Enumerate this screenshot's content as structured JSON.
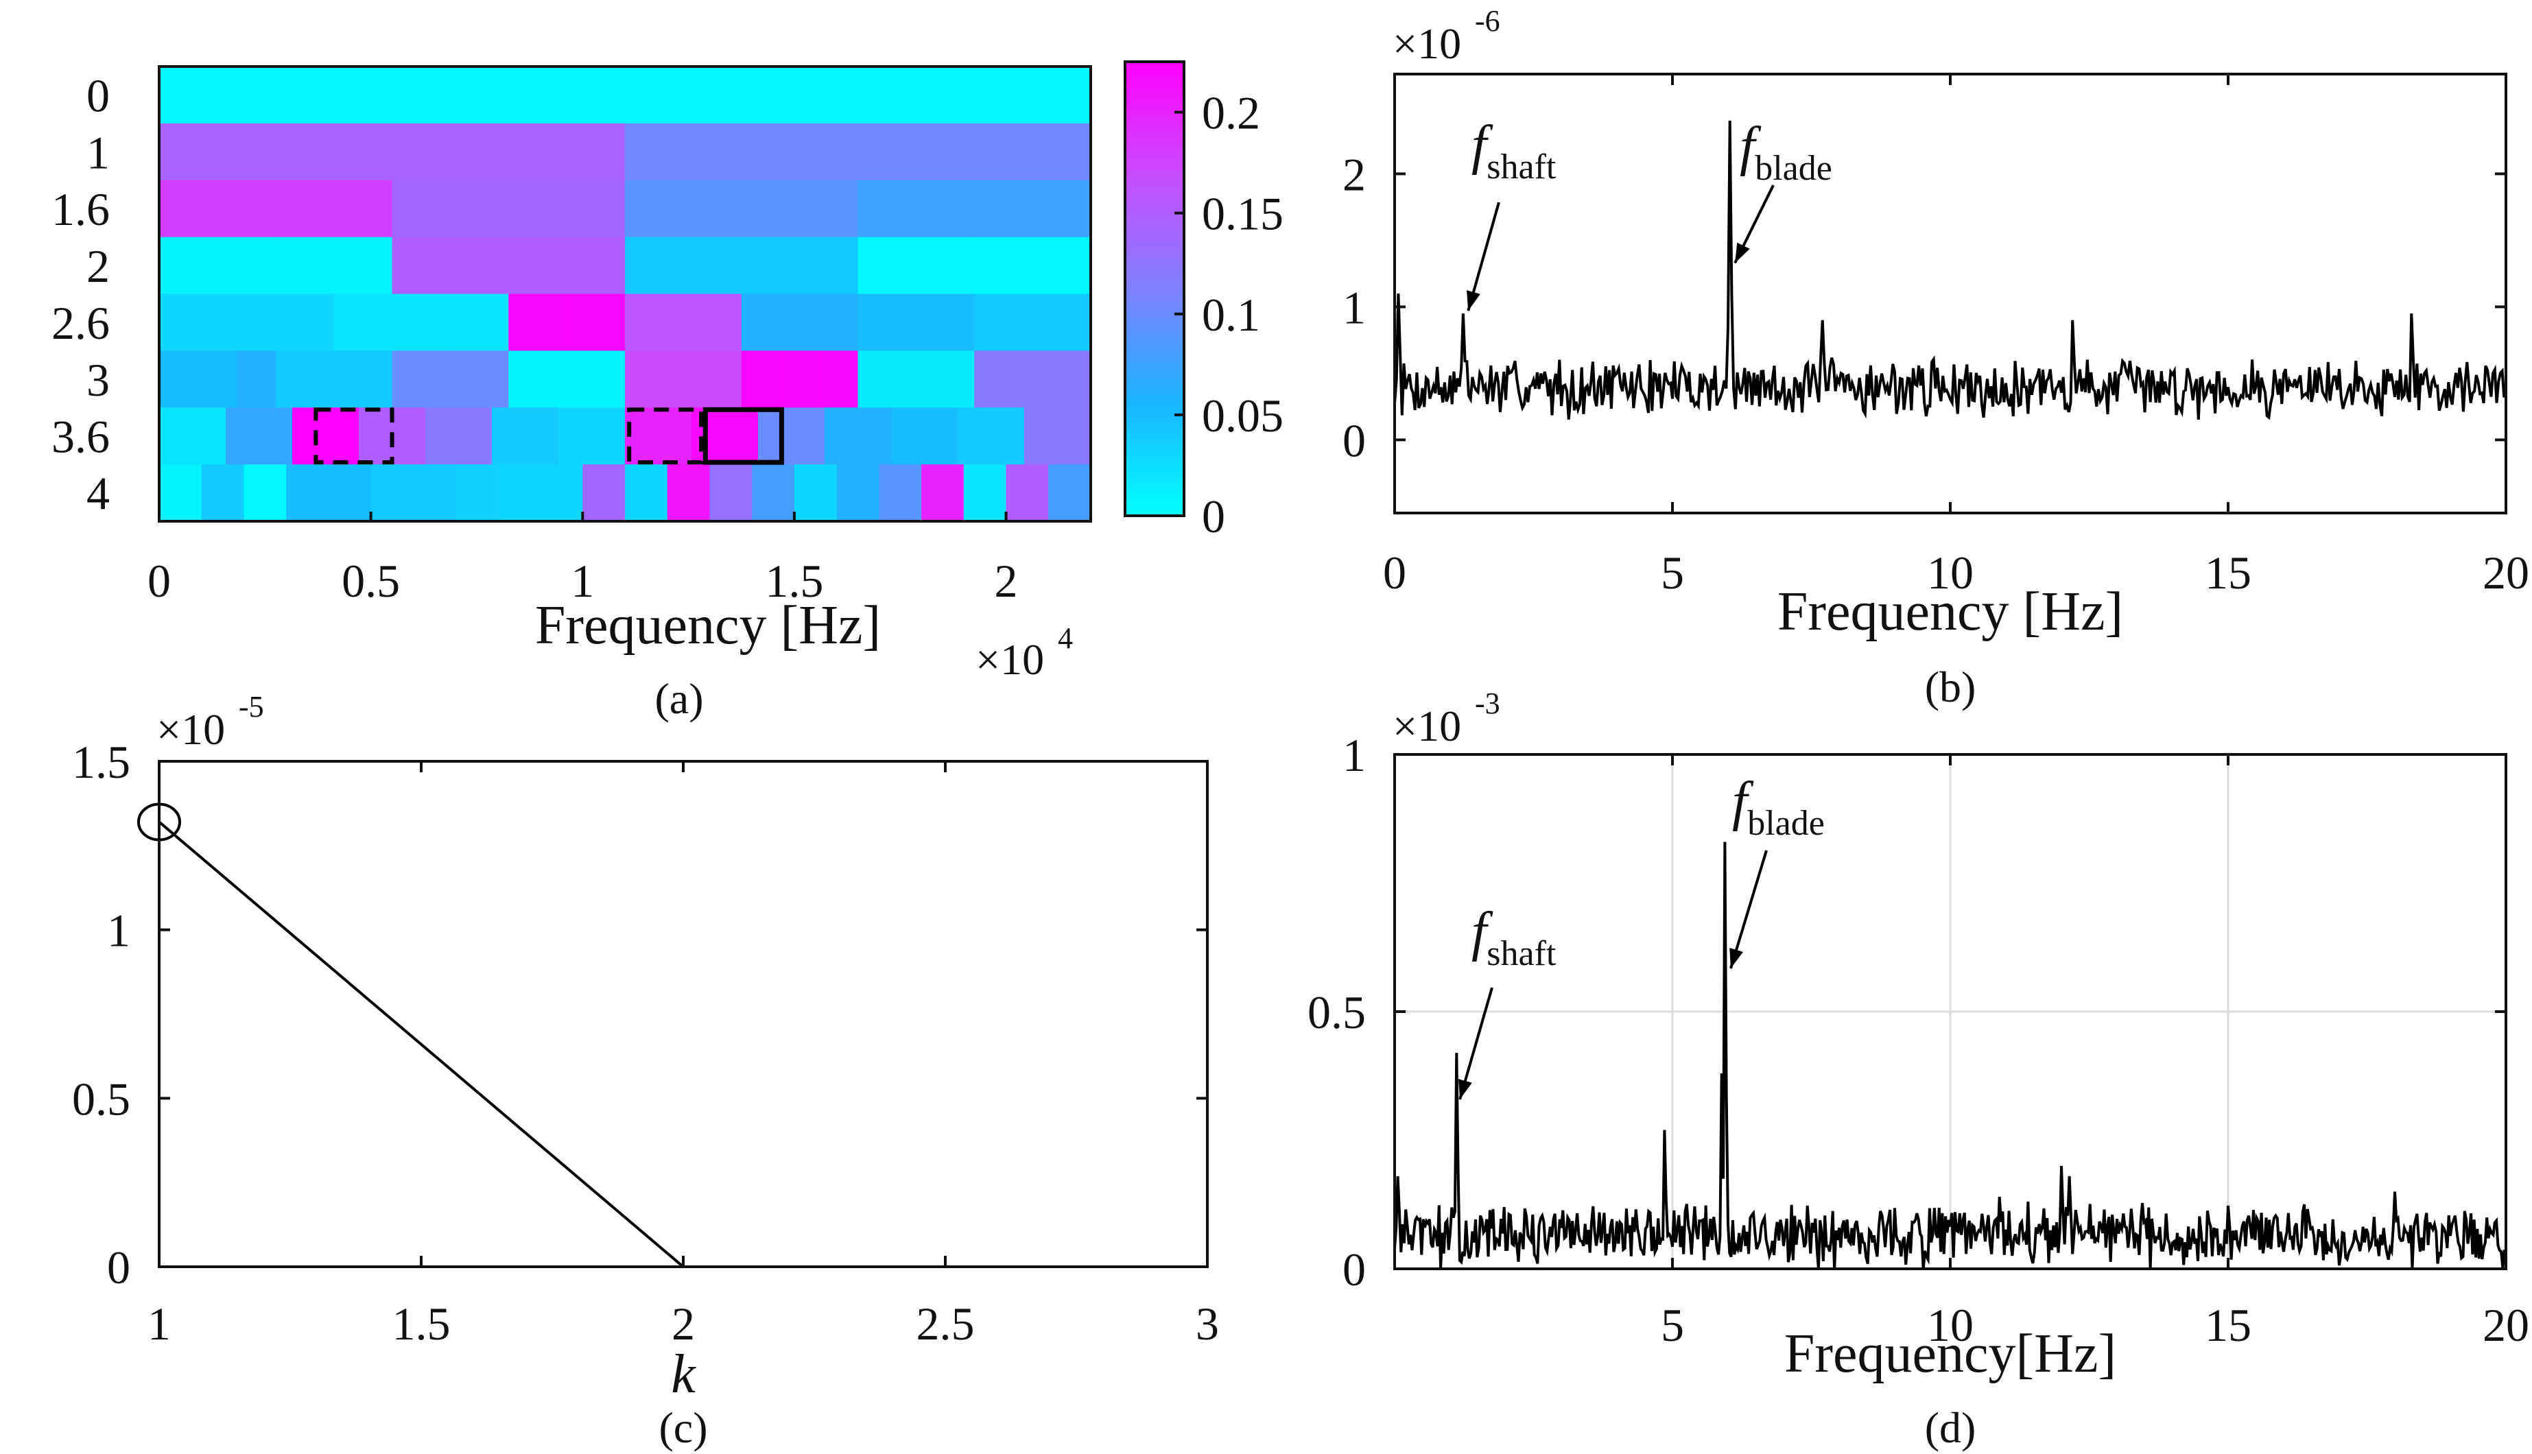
{
  "colors": {
    "axis": "#111111",
    "line": "#000000",
    "grid": "#dcdcdc",
    "colormap": [
      "#00ffff",
      "#1ab4ff",
      "#8080ff",
      "#c84cff",
      "#ff00ff"
    ]
  },
  "chart_data": [
    {
      "id": "a",
      "type": "heatmap",
      "caption": "(a)",
      "xlabel": "Frequency [Hz]",
      "x_multiplier": {
        "base": "×10",
        "exp": "4"
      },
      "xlim": [
        0,
        2.2
      ],
      "xticks": [
        "0",
        "0.5",
        "1",
        "1.5",
        "2"
      ],
      "xtick_values": [
        0,
        0.5,
        1,
        1.5,
        2
      ],
      "ylabels": [
        "0",
        "1",
        "1.6",
        "2",
        "2.6",
        "3",
        "3.6",
        "4"
      ],
      "colorbar": {
        "min": 0,
        "max": 0.225,
        "ticks": [
          "0",
          "0.05",
          "0.1",
          "0.15",
          "0.2"
        ],
        "tick_values": [
          0,
          0.05,
          0.1,
          0.15,
          0.2
        ]
      },
      "rows": [
        {
          "level": "0",
          "values": [
            0.005
          ]
        },
        {
          "level": "1",
          "values": [
            0.145,
            0.105
          ]
        },
        {
          "level": "1.6",
          "values": [
            0.18,
            0.14,
            0.09,
            0.075
          ]
        },
        {
          "level": "2",
          "values": [
            0.01,
            0.01,
            0.15,
            0.15,
            0.04,
            0.04,
            0.005,
            0.005
          ]
        },
        {
          "level": "2.6",
          "values": [
            0.03,
            0.03,
            0.03,
            0.02,
            0.02,
            0.02,
            0.22,
            0.22,
            0.16,
            0.16,
            0.06,
            0.06,
            0.05,
            0.05,
            0.04,
            0.04
          ]
        },
        {
          "level": "3",
          "values": [
            0.05,
            0.05,
            0.06,
            0.04,
            0.04,
            0.04,
            0.1,
            0.1,
            0.1,
            0.01,
            0.01,
            0.01,
            0.17,
            0.17,
            0.17,
            0.22,
            0.22,
            0.22,
            0.015,
            0.015,
            0.015,
            0.12,
            0.12,
            0.12
          ]
        },
        {
          "level": "3.6",
          "values": [
            0.02,
            0.07,
            0.225,
            0.15,
            0.12,
            0.04,
            0.03,
            0.2,
            0.22,
            0.1,
            0.06,
            0.05,
            0.04,
            0.12
          ]
        },
        {
          "level": "4",
          "values": [
            0.01,
            0.04,
            0.005,
            0.05,
            0.05,
            0.04,
            0.04,
            0.035,
            0.03,
            0.03,
            0.14,
            0.03,
            0.21,
            0.13,
            0.08,
            0.03,
            0.06,
            0.09,
            0.2,
            0.02,
            0.15,
            0.08
          ]
        }
      ],
      "highlights": [
        {
          "style": "dashed",
          "x": [
            0.37,
            0.55
          ],
          "row": "3.6"
        },
        {
          "style": "dashed",
          "x": [
            1.11,
            1.28
          ],
          "row": "3.6"
        },
        {
          "style": "solid",
          "x": [
            1.29,
            1.47
          ],
          "row": "3.6"
        }
      ]
    },
    {
      "id": "b",
      "type": "line",
      "caption": "(b)",
      "xlabel": "Frequency [Hz]",
      "y_multiplier": {
        "base": "×10",
        "exp": "-6"
      },
      "xlim": [
        0,
        20
      ],
      "ylim": [
        -0.55,
        2.75
      ],
      "xticks": [
        "0",
        "5",
        "10",
        "15",
        "20"
      ],
      "xtick_values": [
        0,
        5,
        10,
        15,
        20
      ],
      "yticks": [
        "0",
        "1",
        "2"
      ],
      "ytick_values": [
        0,
        1,
        2
      ],
      "grid": false,
      "noise": {
        "base": 0.4,
        "amp": 0.18,
        "seed": 7,
        "n": 600
      },
      "peaks": [
        {
          "x": 0.05,
          "y": 1.1
        },
        {
          "x": 1.25,
          "y": 0.95
        },
        {
          "x": 6.05,
          "y": 2.4
        },
        {
          "x": 6.0,
          "y": 0.85
        },
        {
          "x": 7.7,
          "y": 0.9
        },
        {
          "x": 12.2,
          "y": 0.9
        },
        {
          "x": 18.3,
          "y": 0.95
        }
      ],
      "annotations": [
        {
          "label": "f",
          "sub": "shaft",
          "x": 1.25,
          "y": 0.95
        },
        {
          "label": "f",
          "sub": "blade",
          "x": 6.05,
          "y": 1.35
        }
      ]
    },
    {
      "id": "c",
      "type": "line",
      "caption": "(c)",
      "xlabel": "k",
      "y_multiplier": {
        "base": "×10",
        "exp": "-5"
      },
      "xlim": [
        1,
        3
      ],
      "ylim": [
        0,
        1.5
      ],
      "xticks": [
        "1",
        "1.5",
        "2",
        "2.5",
        "3"
      ],
      "xtick_values": [
        1,
        1.5,
        2,
        2.5,
        3
      ],
      "yticks": [
        "0",
        "0.5",
        "1",
        "1.5"
      ],
      "ytick_values": [
        0,
        0.5,
        1,
        1.5
      ],
      "grid": false,
      "x": [
        1,
        2,
        3
      ],
      "y": [
        1.32,
        0,
        0
      ],
      "marker": {
        "type": "circle",
        "x": 1,
        "y": 1.32
      }
    },
    {
      "id": "d",
      "type": "line",
      "caption": "(d)",
      "xlabel": "Frequency[Hz]",
      "y_multiplier": {
        "base": "×10",
        "exp": "-3"
      },
      "xlim": [
        0,
        20
      ],
      "ylim": [
        0,
        1
      ],
      "xticks": [
        "5",
        "10",
        "15",
        "20"
      ],
      "xtick_values": [
        5,
        10,
        15,
        20
      ],
      "yticks": [
        "0",
        "0.5",
        "1"
      ],
      "ytick_values": [
        0,
        0.5,
        1
      ],
      "grid": true,
      "noise": {
        "base": 0.065,
        "amp": 0.05,
        "seed": 13,
        "n": 700
      },
      "peaks": [
        {
          "x": 0.05,
          "y": 0.18
        },
        {
          "x": 1.1,
          "y": 0.42
        },
        {
          "x": 4.85,
          "y": 0.27
        },
        {
          "x": 5.95,
          "y": 0.83
        },
        {
          "x": 5.9,
          "y": 0.38
        },
        {
          "x": 10.9,
          "y": 0.14
        },
        {
          "x": 12.0,
          "y": 0.2
        },
        {
          "x": 12.15,
          "y": 0.18
        },
        {
          "x": 18.0,
          "y": 0.15
        }
      ],
      "annotations": [
        {
          "label": "f",
          "sub": "shaft",
          "x": 1.1,
          "y": 0.34
        },
        {
          "label": "f",
          "sub": "blade",
          "x": 5.95,
          "y": 0.6
        }
      ]
    }
  ]
}
